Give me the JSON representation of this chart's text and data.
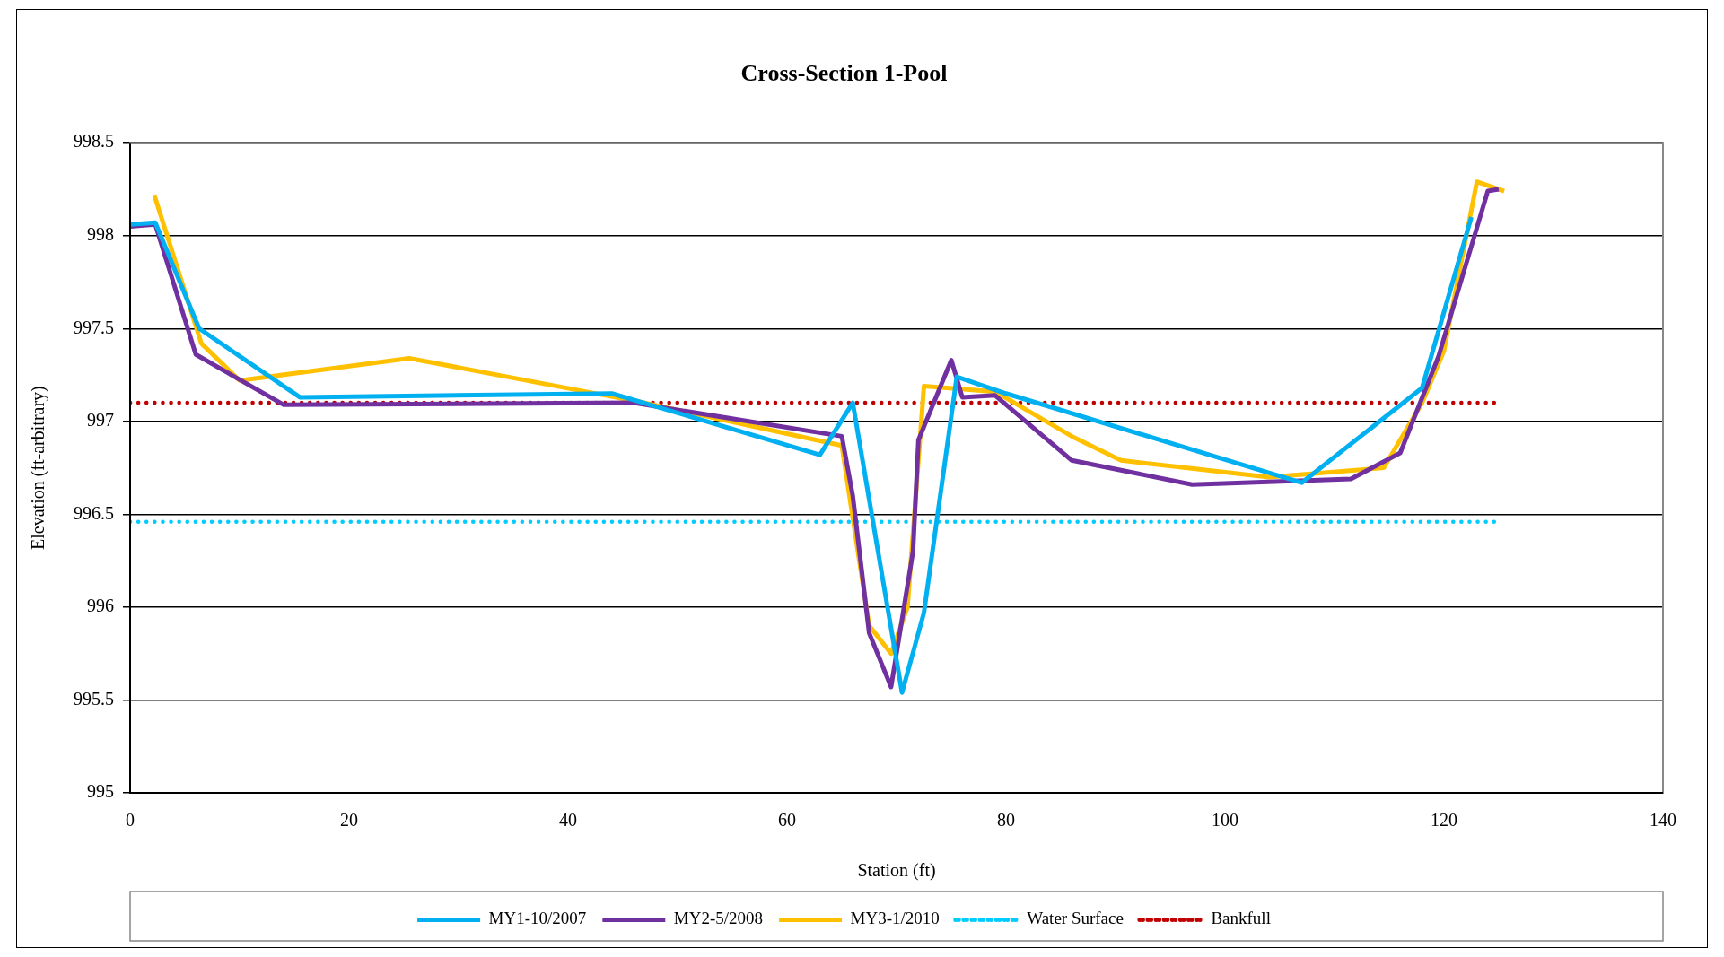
{
  "chart_data": {
    "type": "line",
    "title": "Cross-Section 1-Pool",
    "xlabel": "Station (ft)",
    "ylabel": "Elevation (ft-arbitrary)",
    "xlim": [
      0,
      140
    ],
    "xticks": [
      0,
      20,
      40,
      60,
      80,
      100,
      120,
      140
    ],
    "ylim": [
      995,
      998.5
    ],
    "yticks": [
      995,
      995.5,
      996,
      996.5,
      997,
      997.5,
      998,
      998.5
    ],
    "grid": "y",
    "legend": "bottom",
    "marker": "none",
    "series": [
      {
        "name": "MY1-10/2007",
        "color": "#00b0f0",
        "line_style": "solid",
        "x": [
          0,
          2.3,
          6.3,
          15.5,
          44,
          63,
          66,
          70.5,
          72.5,
          75.5,
          80,
          107,
          118,
          122.5
        ],
        "values": [
          998.06,
          998.07,
          997.5,
          997.13,
          997.15,
          996.82,
          997.1,
          995.54,
          995.97,
          997.24,
          997.15,
          996.67,
          997.18,
          998.1
        ]
      },
      {
        "name": "MY2-5/2008",
        "color": "#7030a0",
        "line_style": "solid",
        "x": [
          0,
          2.3,
          6,
          14,
          46,
          65,
          66,
          67.5,
          69.5,
          71.5,
          72,
          75,
          76,
          79,
          86,
          97,
          111.5,
          116,
          119.5,
          124,
          125
        ],
        "values": [
          998.05,
          998.06,
          997.36,
          997.09,
          997.1,
          996.92,
          996.6,
          995.86,
          995.57,
          996.3,
          996.9,
          997.33,
          997.13,
          997.14,
          996.79,
          996.66,
          996.69,
          996.83,
          997.35,
          998.24,
          998.25
        ]
      },
      {
        "name": "MY3-1/2010",
        "color": "#ffc000",
        "line_style": "solid",
        "x": [
          2.2,
          6.5,
          10,
          25.5,
          47,
          65,
          67.5,
          69.5,
          71,
          72.5,
          79,
          86,
          90.5,
          104,
          114.5,
          118,
          120,
          123,
          125.5
        ],
        "values": [
          998.22,
          997.42,
          997.22,
          997.34,
          997.1,
          996.87,
          995.9,
          995.75,
          996,
          997.19,
          997.16,
          996.92,
          996.79,
          996.7,
          996.75,
          997.1,
          997.38,
          998.29,
          998.24
        ]
      },
      {
        "name": "Water Surface",
        "color": "#00ccff",
        "line_style": "dotted",
        "x": [
          0,
          125
        ],
        "values": [
          996.46,
          996.46
        ]
      },
      {
        "name": "Bankfull",
        "color": "#c00000",
        "line_style": "dotted",
        "x": [
          0,
          125
        ],
        "values": [
          997.1,
          997.1
        ]
      }
    ]
  }
}
